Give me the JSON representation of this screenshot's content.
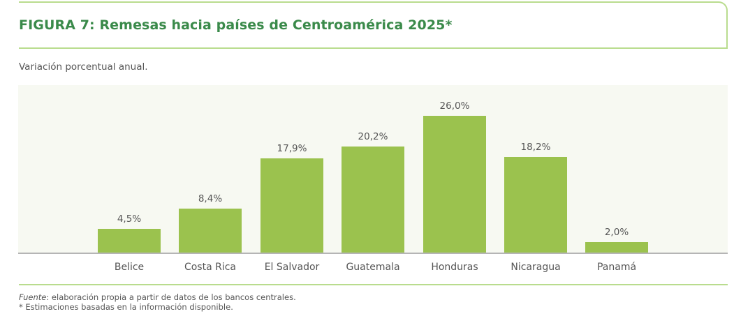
{
  "header": {
    "title": "FIGURA 7: Remesas hacia países de Centroamérica 2025*"
  },
  "subtitle": "Variación porcentual anual.",
  "colors": {
    "bar": "#9bc24e",
    "title": "#3a8a4a",
    "frame": "#b9dc8e",
    "chart_background": "#f7f9f2",
    "baseline": "#b5b5b5",
    "text": "#555555"
  },
  "chart_data": {
    "type": "bar",
    "title": "FIGURA 7: Remesas hacia países de Centroamérica 2025*",
    "subtitle": "Variación porcentual anual.",
    "xlabel": "",
    "ylabel": "",
    "categories": [
      "Belice",
      "Costa Rica",
      "El Salvador",
      "Guatemala",
      "Honduras",
      "Nicaragua",
      "Panamá"
    ],
    "values": [
      4.5,
      8.4,
      17.9,
      20.2,
      26.0,
      18.2,
      2.0
    ],
    "value_labels": [
      "4,5%",
      "8,4%",
      "17,9%",
      "20,2%",
      "26,0%",
      "18,2%",
      "2,0%"
    ],
    "ylim": [
      0,
      30
    ],
    "grid": false,
    "legend": null,
    "y_axis_visible": false
  },
  "footer": {
    "source_label": "Fuente",
    "source_text": ": elaboración propia a partir de datos de los bancos centrales.",
    "note": "* Estimaciones basadas en la información disponible."
  }
}
